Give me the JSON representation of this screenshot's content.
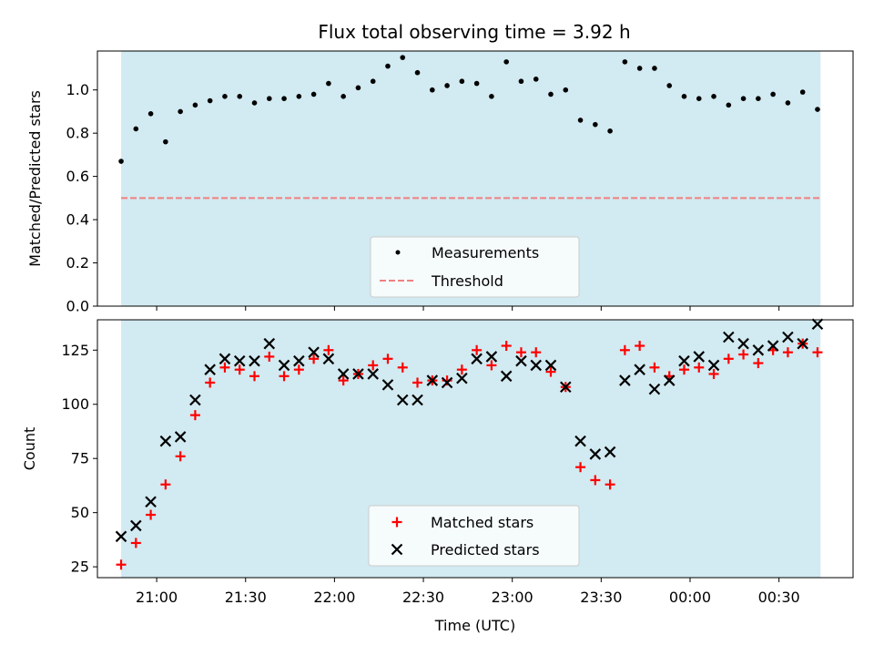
{
  "chart_data": [
    {
      "type": "scatter",
      "title": "Flux total observing time = 3.92 h",
      "ylabel": "Matched/Predicted stars",
      "xlabel": "",
      "ylim": [
        0,
        1.18
      ],
      "yticks": [
        0.0,
        0.2,
        0.4,
        0.6,
        0.8,
        1.0
      ],
      "ytick_labels": [
        "0.0",
        "0.2",
        "0.4",
        "0.6",
        "0.8",
        "1.0"
      ],
      "shaded_span": {
        "from": "20:48",
        "to": "00:44",
        "color": "#add8e6"
      },
      "threshold": {
        "name": "Threshold",
        "value": 0.5,
        "color": "#f08080",
        "style": "dashed"
      },
      "legend": {
        "placement": "lower center",
        "entries": [
          "Measurements",
          "Threshold"
        ]
      },
      "series": [
        {
          "name": "Measurements",
          "marker": "dot",
          "color": "#000000",
          "x": [
            "20:48",
            "20:53",
            "20:58",
            "21:03",
            "21:08",
            "21:13",
            "21:18",
            "21:23",
            "21:28",
            "21:33",
            "21:38",
            "21:43",
            "21:48",
            "21:53",
            "21:58",
            "22:03",
            "22:08",
            "22:13",
            "22:18",
            "22:23",
            "22:28",
            "22:33",
            "22:38",
            "22:43",
            "22:48",
            "22:53",
            "22:58",
            "23:03",
            "23:08",
            "23:13",
            "23:18",
            "23:23",
            "23:28",
            "23:33",
            "23:38",
            "23:43",
            "23:48",
            "23:53",
            "23:58",
            "00:03",
            "00:08",
            "00:13",
            "00:18",
            "00:23",
            "00:28",
            "00:33",
            "00:38",
            "00:43"
          ],
          "values": [
            0.67,
            0.82,
            0.89,
            0.76,
            0.9,
            0.93,
            0.95,
            0.97,
            0.97,
            0.94,
            0.96,
            0.96,
            0.97,
            0.98,
            1.03,
            0.97,
            1.01,
            1.04,
            1.11,
            1.15,
            1.08,
            1.0,
            1.02,
            1.04,
            1.03,
            0.97,
            1.13,
            1.04,
            1.05,
            0.98,
            1.0,
            0.86,
            0.84,
            0.81,
            1.13,
            1.1,
            1.1,
            1.02,
            0.97,
            0.96,
            0.97,
            0.93,
            0.96,
            0.96,
            0.98,
            0.94,
            0.99,
            0.91
          ]
        }
      ]
    },
    {
      "type": "scatter",
      "title": "",
      "ylabel": "Count",
      "xlabel": "Time (UTC)",
      "ylim": [
        20,
        139
      ],
      "yticks": [
        25,
        50,
        75,
        100,
        125
      ],
      "ytick_labels": [
        "25",
        "50",
        "75",
        "100",
        "125"
      ],
      "xticks": [
        "21:00",
        "21:30",
        "22:00",
        "22:30",
        "23:00",
        "23:30",
        "00:00",
        "00:30"
      ],
      "x_start": "20:40",
      "x_end": "00:55",
      "shaded_span": {
        "from": "20:48",
        "to": "00:44",
        "color": "#add8e6"
      },
      "legend": {
        "placement": "lower center",
        "entries": [
          "Matched stars",
          "Predicted stars"
        ]
      },
      "x": [
        "20:48",
        "20:53",
        "20:58",
        "21:03",
        "21:08",
        "21:13",
        "21:18",
        "21:23",
        "21:28",
        "21:33",
        "21:38",
        "21:43",
        "21:48",
        "21:53",
        "21:58",
        "22:03",
        "22:08",
        "22:13",
        "22:18",
        "22:23",
        "22:28",
        "22:33",
        "22:38",
        "22:43",
        "22:48",
        "22:53",
        "22:58",
        "23:03",
        "23:08",
        "23:13",
        "23:18",
        "23:23",
        "23:28",
        "23:33",
        "23:38",
        "23:43",
        "23:48",
        "23:53",
        "23:58",
        "00:03",
        "00:08",
        "00:13",
        "00:18",
        "00:23",
        "00:28",
        "00:33",
        "00:38",
        "00:43"
      ],
      "series": [
        {
          "name": "Matched stars",
          "marker": "plus",
          "color": "#ff0000",
          "values": [
            26,
            36,
            49,
            63,
            76,
            95,
            110,
            117,
            116,
            113,
            122,
            113,
            116,
            121,
            125,
            111,
            114,
            118,
            121,
            117,
            110,
            111,
            111,
            116,
            125,
            118,
            127,
            124,
            124,
            115,
            108,
            71,
            65,
            63,
            125,
            127,
            117,
            113,
            116,
            117,
            114,
            121,
            123,
            119,
            125,
            124,
            128,
            124
          ]
        },
        {
          "name": "Predicted stars",
          "marker": "x",
          "color": "#000000",
          "values": [
            39,
            44,
            55,
            83,
            85,
            102,
            116,
            121,
            120,
            120,
            128,
            118,
            120,
            124,
            121,
            114,
            114,
            114,
            109,
            102,
            102,
            111,
            110,
            112,
            121,
            122,
            113,
            120,
            118,
            118,
            108,
            83,
            77,
            78,
            111,
            116,
            107,
            111,
            120,
            122,
            118,
            131,
            128,
            125,
            127,
            131,
            128,
            137
          ]
        }
      ]
    }
  ]
}
